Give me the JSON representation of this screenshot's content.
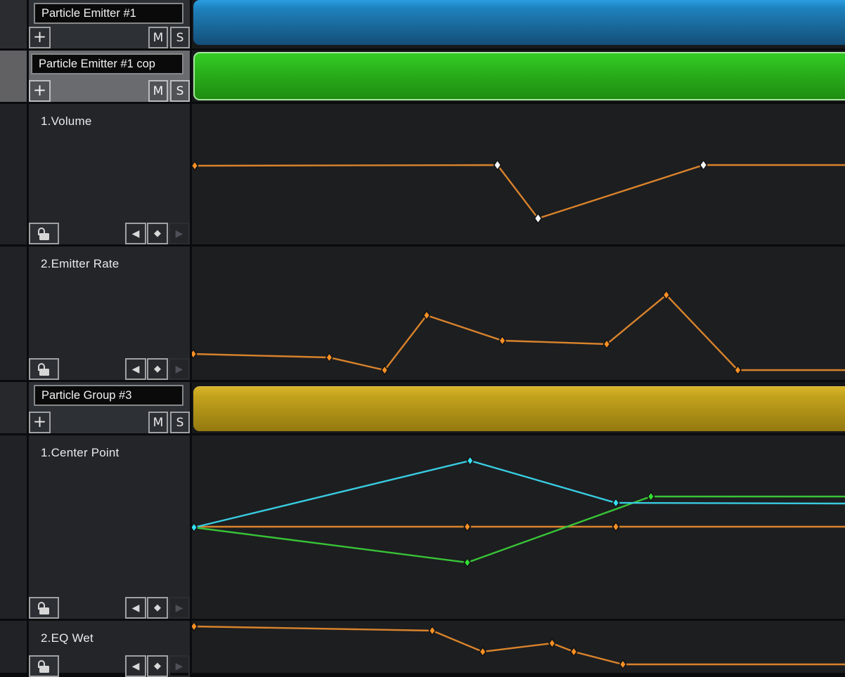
{
  "colors": {
    "orange": "#d9832b",
    "orange_key": "#ff9124",
    "cyan": "#38cbe0",
    "cyan_key": "#35dff2",
    "green": "#38c437",
    "green_key": "#33e135",
    "key_white": "#f6f6f6",
    "bar_blue": "#1d7db8",
    "bar_green": "#28ab19",
    "bar_yellow": "#b2941a"
  },
  "controls": {
    "add": "+",
    "mute": "M",
    "solo": "S",
    "prev_key": "◀",
    "insert_key": "◆",
    "next_key": "▶"
  },
  "tracks": [
    {
      "kind": "group",
      "name": "Particle Emitter #1",
      "selected": false,
      "bar_color": "blue"
    },
    {
      "kind": "group",
      "name": "Particle Emitter #1 cop",
      "selected": true,
      "bar_color": "green"
    },
    {
      "kind": "curve",
      "label": "1.Volume",
      "view_w": 932,
      "view_h": 200,
      "locked": false,
      "curves": [
        {
          "color": "orange",
          "path": [
            [
              4,
              88
            ],
            [
              436,
              87
            ],
            [
              494,
              163
            ],
            [
              730,
              87
            ],
            [
              932,
              87
            ]
          ],
          "keys": [
            [
              4,
              88,
              "k"
            ],
            [
              436,
              87,
              "w"
            ],
            [
              494,
              163,
              "w"
            ],
            [
              730,
              87,
              "w"
            ]
          ]
        }
      ]
    },
    {
      "kind": "curve",
      "label": "2.Emitter Rate",
      "view_w": 932,
      "view_h": 190,
      "locked": false,
      "curves": [
        {
          "color": "orange",
          "path": [
            [
              2,
              153
            ],
            [
              196,
              158
            ],
            [
              275,
              176
            ],
            [
              335,
              98
            ],
            [
              443,
              134
            ],
            [
              592,
              139
            ],
            [
              677,
              69
            ],
            [
              779,
              176
            ],
            [
              932,
              176
            ]
          ],
          "keys": [
            [
              2,
              153,
              "k"
            ],
            [
              196,
              158,
              "k"
            ],
            [
              275,
              176,
              "k"
            ],
            [
              335,
              98,
              "k"
            ],
            [
              443,
              134,
              "k"
            ],
            [
              592,
              139,
              "k"
            ],
            [
              677,
              69,
              "k"
            ],
            [
              779,
              176,
              "k"
            ]
          ]
        }
      ]
    },
    {
      "kind": "group",
      "name": "Particle Group #3",
      "selected": false,
      "bar_color": "yellow"
    },
    {
      "kind": "curve",
      "label": "1.Center Point",
      "view_w": 932,
      "view_h": 261,
      "locked": false,
      "curves": [
        {
          "color": "orange",
          "path": [
            [
              0,
              130
            ],
            [
              932,
              130
            ]
          ],
          "keys": [
            [
              393,
              130,
              "k"
            ],
            [
              605,
              130,
              "k"
            ]
          ]
        },
        {
          "color": "green",
          "path": [
            [
              3,
              131
            ],
            [
              393,
              181
            ],
            [
              655,
              87
            ],
            [
              932,
              87
            ]
          ],
          "keys": [
            [
              393,
              181,
              "k"
            ],
            [
              655,
              87,
              "k"
            ]
          ]
        },
        {
          "color": "cyan",
          "path": [
            [
              3,
              131
            ],
            [
              397,
              36
            ],
            [
              605,
              96
            ],
            [
              932,
              97
            ]
          ],
          "keys": [
            [
              3,
              131,
              "k"
            ],
            [
              397,
              36,
              "k"
            ],
            [
              605,
              96,
              "k"
            ]
          ]
        }
      ]
    },
    {
      "kind": "curve",
      "label": "2.EQ Wet",
      "view_w": 932,
      "view_h": 74,
      "locked": false,
      "curves": [
        {
          "color": "orange",
          "path": [
            [
              3,
              8
            ],
            [
              343,
              14
            ],
            [
              415,
              44
            ],
            [
              514,
              32
            ],
            [
              545,
              44
            ],
            [
              615,
              62
            ],
            [
              932,
              62
            ]
          ],
          "keys": [
            [
              3,
              8,
              "k"
            ],
            [
              343,
              14,
              "k"
            ],
            [
              415,
              44,
              "k"
            ],
            [
              514,
              32,
              "k"
            ],
            [
              545,
              44,
              "k"
            ],
            [
              615,
              62,
              "k"
            ]
          ]
        }
      ]
    }
  ]
}
